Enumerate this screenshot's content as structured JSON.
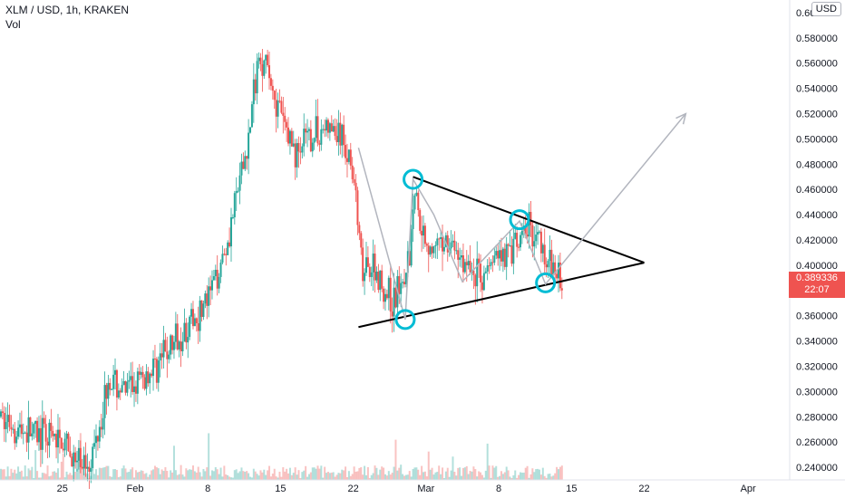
{
  "header": {
    "symbol_line": "XLM / USD, 1h, KRAKEN",
    "volume_label": "Vol",
    "currency_button": "USD"
  },
  "price_badge": {
    "price": "0.389336",
    "countdown": "22:07",
    "value": 0.389336
  },
  "colors": {
    "up": "#26a69a",
    "down": "#ef5350",
    "pattern": "#000000",
    "path": "#b2b5be",
    "marker": "#00bcd4"
  },
  "chart_data": {
    "type": "candlestick",
    "title": "XLM / USD, 1h, KRAKEN",
    "y_axis_position": "right",
    "ylim": [
      0.23,
      0.61
    ],
    "xlim": [
      "2021-01-19",
      "2021-04-05"
    ],
    "y_ticks": [
      "0.240000",
      "0.260000",
      "0.280000",
      "0.300000",
      "0.320000",
      "0.340000",
      "0.360000",
      "0.380000",
      "0.400000",
      "0.420000",
      "0.440000",
      "0.460000",
      "0.480000",
      "0.500000",
      "0.520000",
      "0.540000",
      "0.560000",
      "0.580000",
      "0.600000"
    ],
    "x_ticks": [
      {
        "label": "25",
        "date": "2021-01-25"
      },
      {
        "label": "Feb",
        "date": "2021-02-01"
      },
      {
        "label": "8",
        "date": "2021-02-08"
      },
      {
        "label": "15",
        "date": "2021-02-15"
      },
      {
        "label": "22",
        "date": "2021-02-22"
      },
      {
        "label": "Mar",
        "date": "2021-03-01"
      },
      {
        "label": "8",
        "date": "2021-03-08"
      },
      {
        "label": "15",
        "date": "2021-03-15"
      },
      {
        "label": "22",
        "date": "2021-03-22"
      },
      {
        "label": "Apr",
        "date": "2021-04-01"
      }
    ],
    "price_path": [
      {
        "date": "2021-01-19T00:00",
        "price": 0.28
      },
      {
        "date": "2021-01-21T00:00",
        "price": 0.27
      },
      {
        "date": "2021-01-23T00:00",
        "price": 0.265
      },
      {
        "date": "2021-01-25T00:00",
        "price": 0.26
      },
      {
        "date": "2021-01-26T12:00",
        "price": 0.24
      },
      {
        "date": "2021-01-28T00:00",
        "price": 0.25
      },
      {
        "date": "2021-01-29T12:00",
        "price": 0.31
      },
      {
        "date": "2021-01-31T00:00",
        "price": 0.3
      },
      {
        "date": "2021-02-02T00:00",
        "price": 0.31
      },
      {
        "date": "2021-02-04T00:00",
        "price": 0.33
      },
      {
        "date": "2021-02-06T00:00",
        "price": 0.35
      },
      {
        "date": "2021-02-08T00:00",
        "price": 0.37
      },
      {
        "date": "2021-02-10T00:00",
        "price": 0.42
      },
      {
        "date": "2021-02-12T00:00",
        "price": 0.5
      },
      {
        "date": "2021-02-13T00:00",
        "price": 0.57
      },
      {
        "date": "2021-02-14T00:00",
        "price": 0.55
      },
      {
        "date": "2021-02-15T00:00",
        "price": 0.52
      },
      {
        "date": "2021-02-16T12:00",
        "price": 0.49
      },
      {
        "date": "2021-02-18T00:00",
        "price": 0.5
      },
      {
        "date": "2021-02-19T12:00",
        "price": 0.51
      },
      {
        "date": "2021-02-21T00:00",
        "price": 0.5
      },
      {
        "date": "2021-02-22T00:00",
        "price": 0.48
      },
      {
        "date": "2021-02-23T00:00",
        "price": 0.39
      },
      {
        "date": "2021-02-24T00:00",
        "price": 0.4
      },
      {
        "date": "2021-02-25T00:00",
        "price": 0.38
      },
      {
        "date": "2021-02-26T00:00",
        "price": 0.37
      },
      {
        "date": "2021-02-27T12:00",
        "price": 0.41
      },
      {
        "date": "2021-02-28T00:00",
        "price": 0.46
      },
      {
        "date": "2021-03-01T00:00",
        "price": 0.42
      },
      {
        "date": "2021-03-02T00:00",
        "price": 0.41
      },
      {
        "date": "2021-03-03T00:00",
        "price": 0.42
      },
      {
        "date": "2021-03-04T00:00",
        "price": 0.41
      },
      {
        "date": "2021-03-05T00:00",
        "price": 0.4
      },
      {
        "date": "2021-03-06T12:00",
        "price": 0.39
      },
      {
        "date": "2021-03-08T00:00",
        "price": 0.41
      },
      {
        "date": "2021-03-09T12:00",
        "price": 0.41
      },
      {
        "date": "2021-03-11T00:00",
        "price": 0.43
      },
      {
        "date": "2021-03-12T00:00",
        "price": 0.42
      },
      {
        "date": "2021-03-13T00:00",
        "price": 0.4
      },
      {
        "date": "2021-03-14T00:00",
        "price": 0.389
      }
    ],
    "annotations": {
      "triangle_upper": [
        {
          "date": "2021-02-27T18:00",
          "price": 0.47
        },
        {
          "date": "2021-03-22T00:00",
          "price": 0.402
        }
      ],
      "triangle_lower": [
        {
          "date": "2021-02-22T12:00",
          "price": 0.351
        },
        {
          "date": "2021-03-22T00:00",
          "price": 0.402
        }
      ],
      "wave_path": [
        {
          "date": "2021-02-22T12:00",
          "price": 0.493
        },
        {
          "date": "2021-02-27T00:00",
          "price": 0.357
        },
        {
          "date": "2021-02-27T18:00",
          "price": 0.468
        },
        {
          "date": "2021-03-01T18:00",
          "price": 0.44
        },
        {
          "date": "2021-03-04T12:00",
          "price": 0.387
        },
        {
          "date": "2021-03-10T00:00",
          "price": 0.435
        },
        {
          "date": "2021-03-12T12:00",
          "price": 0.385
        },
        {
          "date": "2021-03-26T00:00",
          "price": 0.52
        }
      ],
      "markers": [
        {
          "date": "2021-02-27T00:00",
          "price": 0.357
        },
        {
          "date": "2021-02-27T18:00",
          "price": 0.468
        },
        {
          "date": "2021-03-10T00:00",
          "price": 0.436
        },
        {
          "date": "2021-03-12T12:00",
          "price": 0.386
        }
      ]
    }
  }
}
